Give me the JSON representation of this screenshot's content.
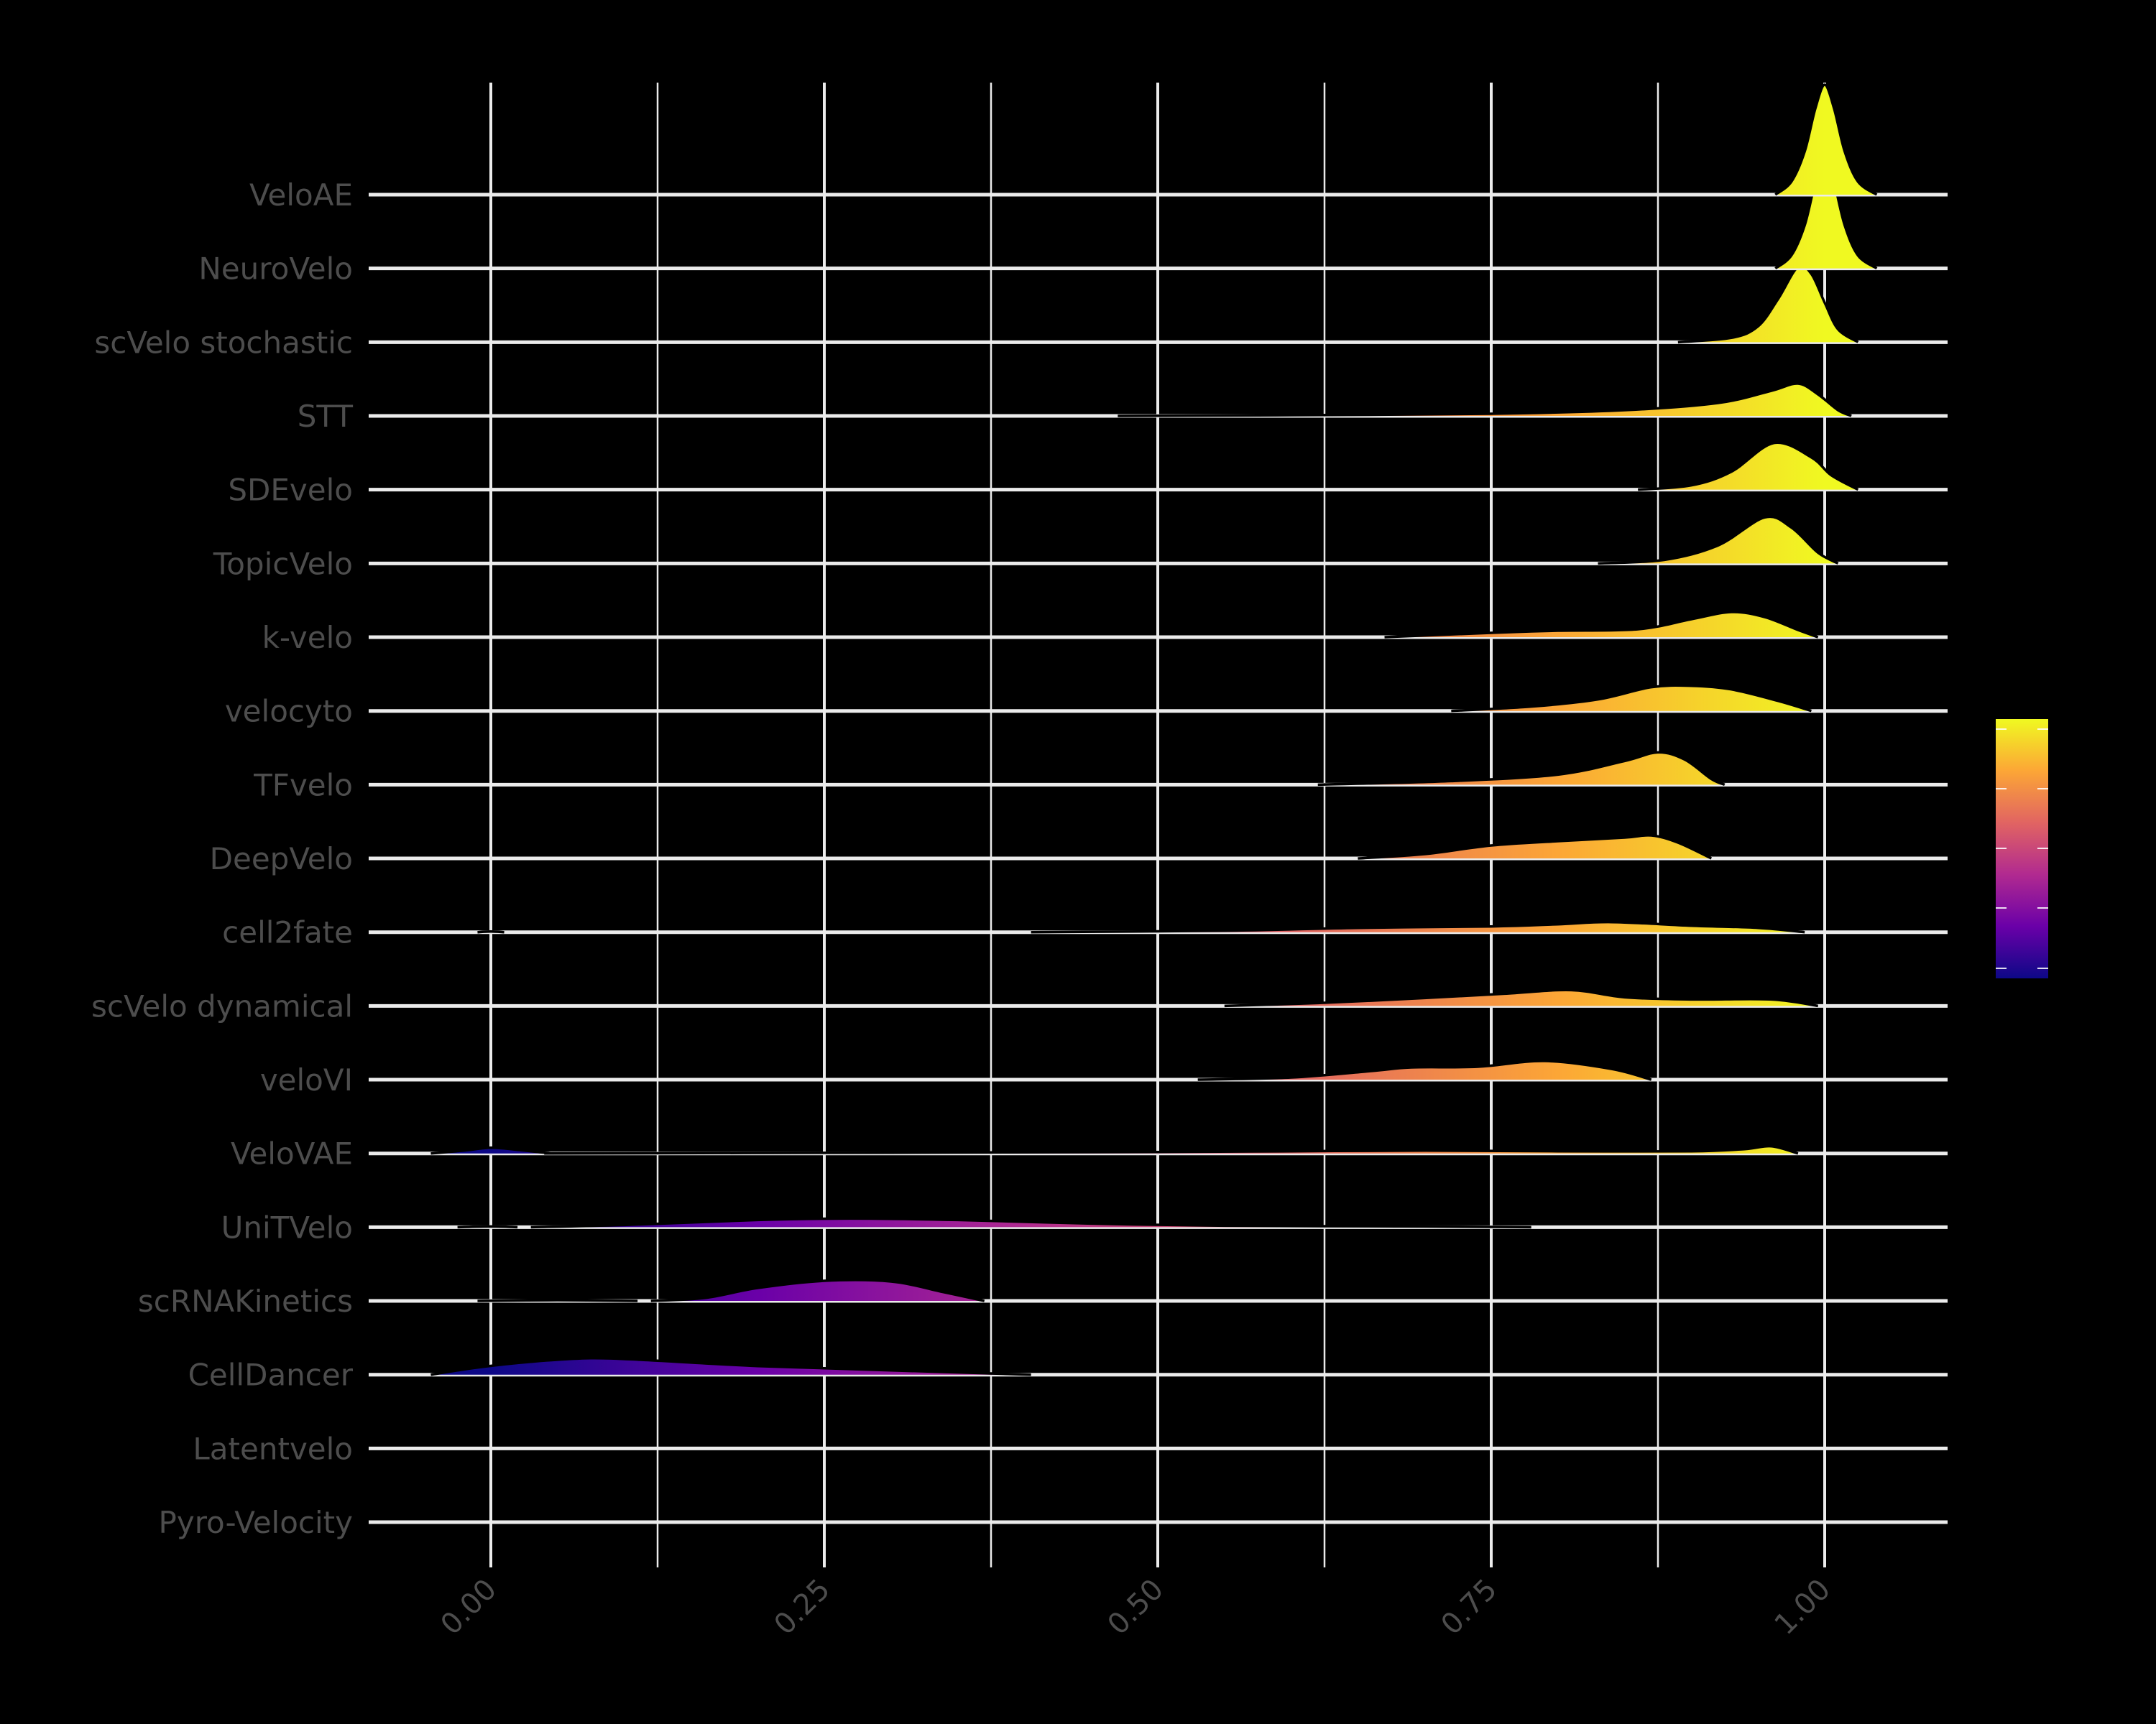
{
  "chart_data": {
    "type": "ridgeline",
    "title": "",
    "xlabel": "",
    "ylabel": "",
    "xlim": [
      -0.0475,
      1.0925
    ],
    "x_ticks": [
      0.0,
      0.25,
      0.5,
      0.75,
      1.0
    ],
    "x_tick_labels": [
      "0.00",
      "0.25",
      "0.50",
      "0.75",
      "1.00"
    ],
    "x_minor_gridlines": [
      0.125,
      0.375,
      0.625,
      0.875
    ],
    "grid": true,
    "legend": {
      "type": "colorbar",
      "position": "right",
      "colormap": "plasma",
      "labels_visible": false,
      "ticks": 5
    },
    "categories": [
      "VeloAE",
      "NeuroVelo",
      "scVelo stochastic",
      "STT",
      "SDEvelo",
      "TopicVelo",
      "k-velo",
      "velocyto",
      "TFvelo",
      "DeepVelo",
      "cell2fate",
      "scVelo dynamical",
      "veloVI",
      "VeloVAE",
      "UniTVelo",
      "scRNAKinetics",
      "CellDancer",
      "Latentvelo",
      "Pyro-Velocity"
    ],
    "series": [
      {
        "name": "VeloAE",
        "range": [
          0.963,
          1.039
        ],
        "peak": 1.0,
        "points": [
          [
            0.963,
            0
          ],
          [
            0.975,
            18
          ],
          [
            0.985,
            60
          ],
          [
            0.993,
            120
          ],
          [
            1.0,
            153
          ],
          [
            1.007,
            120
          ],
          [
            1.015,
            60
          ],
          [
            1.025,
            18
          ],
          [
            1.039,
            0
          ]
        ]
      },
      {
        "name": "NeuroVelo",
        "range": [
          0.963,
          1.039
        ],
        "peak": 1.0,
        "points": [
          [
            0.963,
            0
          ],
          [
            0.975,
            18
          ],
          [
            0.985,
            60
          ],
          [
            0.993,
            120
          ],
          [
            1.0,
            153
          ],
          [
            1.007,
            120
          ],
          [
            1.015,
            60
          ],
          [
            1.025,
            18
          ],
          [
            1.039,
            0
          ]
        ]
      },
      {
        "name": "scVelo stochastic",
        "range": [
          0.89,
          1.025
        ],
        "peak": 0.98,
        "points": [
          [
            0.89,
            0
          ],
          [
            0.93,
            6
          ],
          [
            0.95,
            22
          ],
          [
            0.965,
            60
          ],
          [
            0.98,
            105
          ],
          [
            0.99,
            95
          ],
          [
            1.0,
            55
          ],
          [
            1.01,
            18
          ],
          [
            1.025,
            0
          ]
        ]
      },
      {
        "name": "STT",
        "range": [
          0.47,
          1.02
        ],
        "peak": 0.98,
        "points": [
          [
            0.47,
            0
          ],
          [
            0.6,
            1
          ],
          [
            0.75,
            3
          ],
          [
            0.85,
            8
          ],
          [
            0.92,
            18
          ],
          [
            0.96,
            35
          ],
          [
            0.98,
            45
          ],
          [
            0.995,
            30
          ],
          [
            1.01,
            8
          ],
          [
            1.02,
            0
          ]
        ]
      },
      {
        "name": "SDEvelo",
        "range": [
          0.86,
          1.025
        ],
        "peak": 0.962,
        "points": [
          [
            0.86,
            0
          ],
          [
            0.9,
            6
          ],
          [
            0.93,
            25
          ],
          [
            0.962,
            65
          ],
          [
            0.99,
            45
          ],
          [
            1.005,
            20
          ],
          [
            1.025,
            0
          ]
        ]
      },
      {
        "name": "TopicVelo",
        "range": [
          0.83,
          1.01
        ],
        "peak": 0.955,
        "points": [
          [
            0.83,
            0
          ],
          [
            0.88,
            5
          ],
          [
            0.92,
            25
          ],
          [
            0.955,
            64
          ],
          [
            0.975,
            50
          ],
          [
            0.995,
            15
          ],
          [
            1.01,
            0
          ]
        ]
      },
      {
        "name": "k-velo",
        "range": [
          0.67,
          0.995
        ],
        "peak": 0.93,
        "points": [
          [
            0.67,
            0
          ],
          [
            0.75,
            6
          ],
          [
            0.8,
            9
          ],
          [
            0.86,
            11
          ],
          [
            0.9,
            25
          ],
          [
            0.93,
            35
          ],
          [
            0.955,
            28
          ],
          [
            0.98,
            10
          ],
          [
            0.995,
            0
          ]
        ]
      },
      {
        "name": "velocyto",
        "range": [
          0.72,
          0.99
        ],
        "peak": 0.885,
        "points": [
          [
            0.72,
            0
          ],
          [
            0.78,
            6
          ],
          [
            0.83,
            16
          ],
          [
            0.87,
            33
          ],
          [
            0.9,
            35
          ],
          [
            0.93,
            30
          ],
          [
            0.965,
            14
          ],
          [
            0.99,
            0
          ]
        ]
      },
      {
        "name": "TFvelo",
        "range": [
          0.62,
          0.925
        ],
        "peak": 0.875,
        "points": [
          [
            0.62,
            0
          ],
          [
            0.72,
            5
          ],
          [
            0.8,
            14
          ],
          [
            0.85,
            33
          ],
          [
            0.875,
            45
          ],
          [
            0.895,
            35
          ],
          [
            0.915,
            8
          ],
          [
            0.925,
            0
          ]
        ]
      },
      {
        "name": "DeepVelo",
        "range": [
          0.65,
          0.915
        ],
        "peak": 0.87,
        "points": [
          [
            0.65,
            0
          ],
          [
            0.7,
            6
          ],
          [
            0.75,
            18
          ],
          [
            0.8,
            24
          ],
          [
            0.85,
            29
          ],
          [
            0.87,
            32
          ],
          [
            0.89,
            22
          ],
          [
            0.915,
            0
          ]
        ]
      },
      {
        "name": "cell2fate",
        "range": [
          0.405,
          0.985
        ],
        "peak": 0.84,
        "points": [
          [
            0.405,
            0
          ],
          [
            0.55,
            2
          ],
          [
            0.65,
            6
          ],
          [
            0.75,
            8
          ],
          [
            0.8,
            11
          ],
          [
            0.84,
            14
          ],
          [
            0.9,
            9
          ],
          [
            0.95,
            6
          ],
          [
            0.985,
            0
          ]
        ],
        "extra": [
          [
            -0.01,
            0
          ],
          [
            0.0,
            1
          ],
          [
            0.01,
            0
          ]
        ]
      },
      {
        "name": "scVelo dynamical",
        "range": [
          0.55,
          0.995
        ],
        "peak": 0.81,
        "points": [
          [
            0.55,
            0
          ],
          [
            0.62,
            4
          ],
          [
            0.7,
            11
          ],
          [
            0.76,
            17
          ],
          [
            0.81,
            22
          ],
          [
            0.85,
            12
          ],
          [
            0.9,
            9
          ],
          [
            0.96,
            9
          ],
          [
            0.995,
            0
          ]
        ]
      },
      {
        "name": "veloVI",
        "range": [
          0.53,
          0.87
        ],
        "peak": 0.79,
        "points": [
          [
            0.53,
            0
          ],
          [
            0.6,
            3
          ],
          [
            0.66,
            12
          ],
          [
            0.69,
            17
          ],
          [
            0.74,
            18
          ],
          [
            0.79,
            26
          ],
          [
            0.84,
            15
          ],
          [
            0.87,
            0
          ]
        ]
      },
      {
        "name": "VeloVAE",
        "range": [
          -0.045,
          0.98
        ],
        "peak": 0.96,
        "points": [
          [
            0.04,
            0
          ],
          [
            0.3,
            1
          ],
          [
            0.5,
            2
          ],
          [
            0.6,
            3
          ],
          [
            0.7,
            4
          ],
          [
            0.8,
            3
          ],
          [
            0.9,
            3
          ],
          [
            0.94,
            6
          ],
          [
            0.96,
            10
          ],
          [
            0.98,
            0
          ]
        ],
        "extra": [
          [
            -0.045,
            0
          ],
          [
            -0.02,
            4
          ],
          [
            0.0,
            8
          ],
          [
            0.02,
            5
          ],
          [
            0.045,
            0
          ]
        ]
      },
      {
        "name": "UniTVelo",
        "range": [
          -0.025,
          0.78
        ],
        "peak": 0.27,
        "points": [
          [
            0.03,
            0
          ],
          [
            0.1,
            3
          ],
          [
            0.2,
            10
          ],
          [
            0.27,
            12
          ],
          [
            0.35,
            10
          ],
          [
            0.45,
            5
          ],
          [
            0.55,
            2
          ],
          [
            0.7,
            1
          ],
          [
            0.78,
            0
          ]
        ],
        "extra": [
          [
            -0.025,
            0
          ],
          [
            0.0,
            1
          ],
          [
            0.02,
            0
          ]
        ]
      },
      {
        "name": "scRNAKinetics",
        "range": [
          -0.01,
          0.37
        ],
        "peak": 0.26,
        "points": [
          [
            0.12,
            0
          ],
          [
            0.16,
            4
          ],
          [
            0.2,
            18
          ],
          [
            0.25,
            28
          ],
          [
            0.3,
            27
          ],
          [
            0.34,
            12
          ],
          [
            0.37,
            0
          ]
        ],
        "extra": [
          [
            -0.01,
            0
          ],
          [
            0.05,
            1
          ],
          [
            0.11,
            0
          ]
        ]
      },
      {
        "name": "CellDancer",
        "range": [
          -0.045,
          0.405
        ],
        "peak": 0.075,
        "points": [
          [
            -0.045,
            0
          ],
          [
            -0.01,
            10
          ],
          [
            0.03,
            18
          ],
          [
            0.075,
            23
          ],
          [
            0.12,
            20
          ],
          [
            0.2,
            12
          ],
          [
            0.3,
            6
          ],
          [
            0.405,
            0
          ]
        ]
      },
      {
        "name": "Latentvelo",
        "range": null,
        "points": []
      },
      {
        "name": "Pyro-Velocity",
        "range": null,
        "points": []
      }
    ]
  },
  "colors": {
    "background": "#000000",
    "grid": "#ebebeb",
    "label": "#4d4d4d",
    "outline": "#000000",
    "colormap_stops": [
      "#0d0887",
      "#6a00a8",
      "#b12a90",
      "#e16462",
      "#fca636",
      "#f0f921"
    ]
  }
}
